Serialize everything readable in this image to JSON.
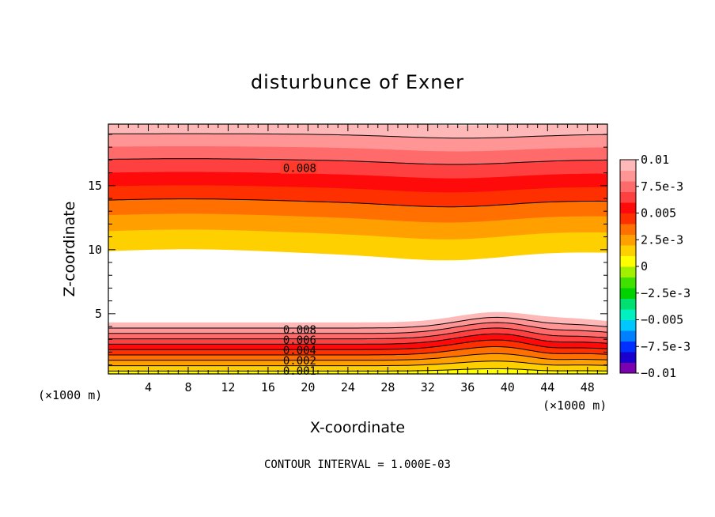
{
  "chart_data": {
    "type": "heatmap",
    "title": "disturbunce of Exner",
    "xlabel": "X-coordinate",
    "ylabel": "Z-coordinate",
    "x_unit_left": "(×1000 m)",
    "x_unit_right": "(×1000 m)",
    "xlim": [
      0,
      50
    ],
    "ylim": [
      0.3,
      19.8
    ],
    "x_ticks": [
      "4",
      "8",
      "12",
      "16",
      "20",
      "24",
      "28",
      "32",
      "36",
      "40",
      "44",
      "48"
    ],
    "y_ticks": [
      "5",
      "10",
      "15"
    ],
    "footnote": "CONTOUR INTERVAL = 1.000E-03",
    "contour_interval": 0.001,
    "contour_labels": [
      "0.008",
      "0.008",
      "0.006",
      "0.004",
      "0.002",
      "0.001"
    ],
    "colorbar": {
      "min": -0.01,
      "max": 0.01,
      "tick_labels": [
        "0.01",
        "7.5e-3",
        "0.005",
        "2.5e-3",
        "0",
        "−2.5e-3",
        "−0.005",
        "−7.5e-3",
        "−0.01"
      ],
      "colors": [
        "#7a00b0",
        "#1a00cc",
        "#0030ff",
        "#0080ff",
        "#00c8ff",
        "#00f0c0",
        "#00e070",
        "#00d200",
        "#40e000",
        "#a0f000",
        "#ffff00",
        "#ffd000",
        "#ffa000",
        "#ff7000",
        "#ff3000",
        "#ff0a0a",
        "#ff4040",
        "#ff6a6a",
        "#ff9595",
        "#ffb8b8"
      ]
    },
    "region_upper": {
      "z_bottom_min": 9.1,
      "z_bottom_max": 9.9,
      "value_bottom": 0.0005,
      "value_top": 0.0095
    },
    "region_lower": {
      "z_top_min": 4.3,
      "z_top_max": 5.2,
      "value_bottom": 0.0,
      "value_top": 0.0095
    }
  }
}
